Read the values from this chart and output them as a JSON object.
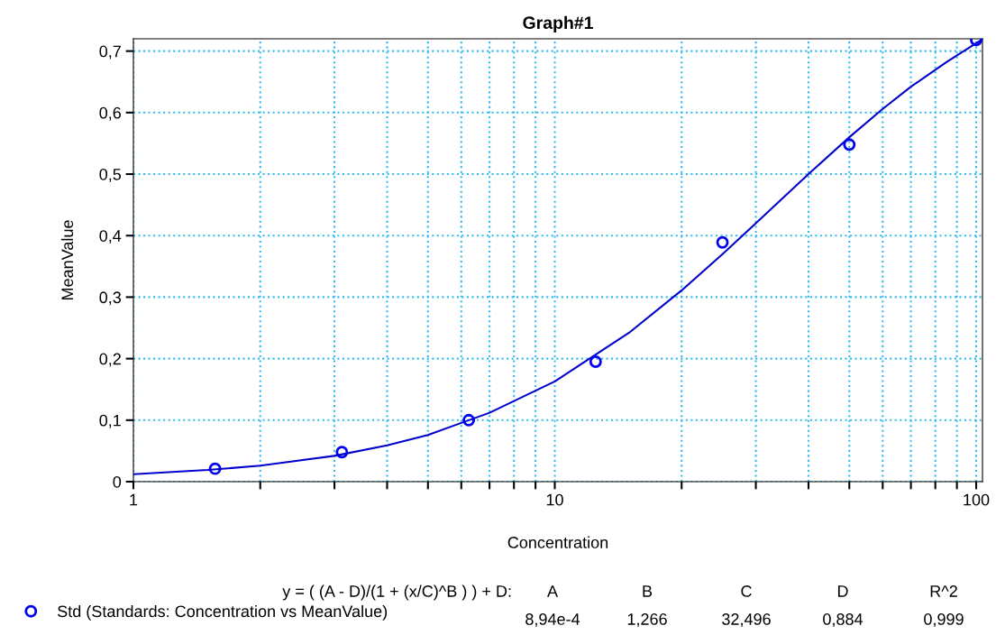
{
  "chart_data": {
    "type": "scatter",
    "title": "Graph#1",
    "xlabel": "Concentration",
    "ylabel": "MeanValue",
    "log": "x",
    "grid": true,
    "legend": "bottom",
    "marker": "circle",
    "xlim": [
      1,
      103.5
    ],
    "ylim": [
      0,
      0.72
    ],
    "xticks": [
      1,
      {
        "value": 2,
        "label": null
      },
      {
        "value": 3,
        "label": null
      },
      {
        "value": 4,
        "label": null
      },
      {
        "value": 5,
        "label": null
      },
      {
        "value": 6,
        "label": null
      },
      {
        "value": 7,
        "label": null
      },
      {
        "value": 8,
        "label": null
      },
      {
        "value": 9,
        "label": null
      },
      10,
      {
        "value": 20,
        "label": null
      },
      {
        "value": 30,
        "label": null
      },
      {
        "value": 40,
        "label": null
      },
      {
        "value": 50,
        "label": null
      },
      {
        "value": 60,
        "label": null
      },
      {
        "value": 70,
        "label": null
      },
      {
        "value": 80,
        "label": null
      },
      {
        "value": 90,
        "label": null
      },
      100
    ],
    "yticks": [
      0,
      {
        "value": 0.1,
        "label": "0,1"
      },
      {
        "value": 0.2,
        "label": "0,2"
      },
      {
        "value": 0.3,
        "label": "0,3"
      },
      {
        "value": 0.4,
        "label": "0,4"
      },
      {
        "value": 0.5,
        "label": "0,5"
      },
      {
        "value": 0.6,
        "label": "0,6"
      },
      {
        "value": 0.7,
        "label": "0,7"
      }
    ],
    "series": [
      {
        "name": "Std (Standards: Concentration vs MeanValue)",
        "color": "#0000ee",
        "x": [
          1.5625,
          3.125,
          6.25,
          12.5,
          25,
          50,
          100
        ],
        "values": [
          0.021,
          0.048,
          0.1,
          0.195,
          0.389,
          0.548,
          0.718
        ]
      },
      {
        "type": "line",
        "color": "#0000cc",
        "marker": "none",
        "x": [
          1,
          1.5,
          2,
          3,
          4,
          5,
          7,
          10,
          15,
          20,
          25,
          30,
          40,
          50,
          60,
          70,
          85,
          100,
          103
        ],
        "values": [
          0.012,
          0.019,
          0.026,
          0.042,
          0.059,
          0.076,
          0.112,
          0.163,
          0.242,
          0.311,
          0.37,
          0.42,
          0.5,
          0.56,
          0.606,
          0.642,
          0.682,
          0.713,
          0.718
        ]
      }
    ],
    "annotations": [
      "y = ( (A - D)/(1 + (x/C)^B ) ) + D:",
      "A",
      "B",
      "C",
      "D",
      "R^2",
      "8,94e-4",
      "1,266",
      "32,496",
      "0,884",
      "0,999"
    ]
  }
}
